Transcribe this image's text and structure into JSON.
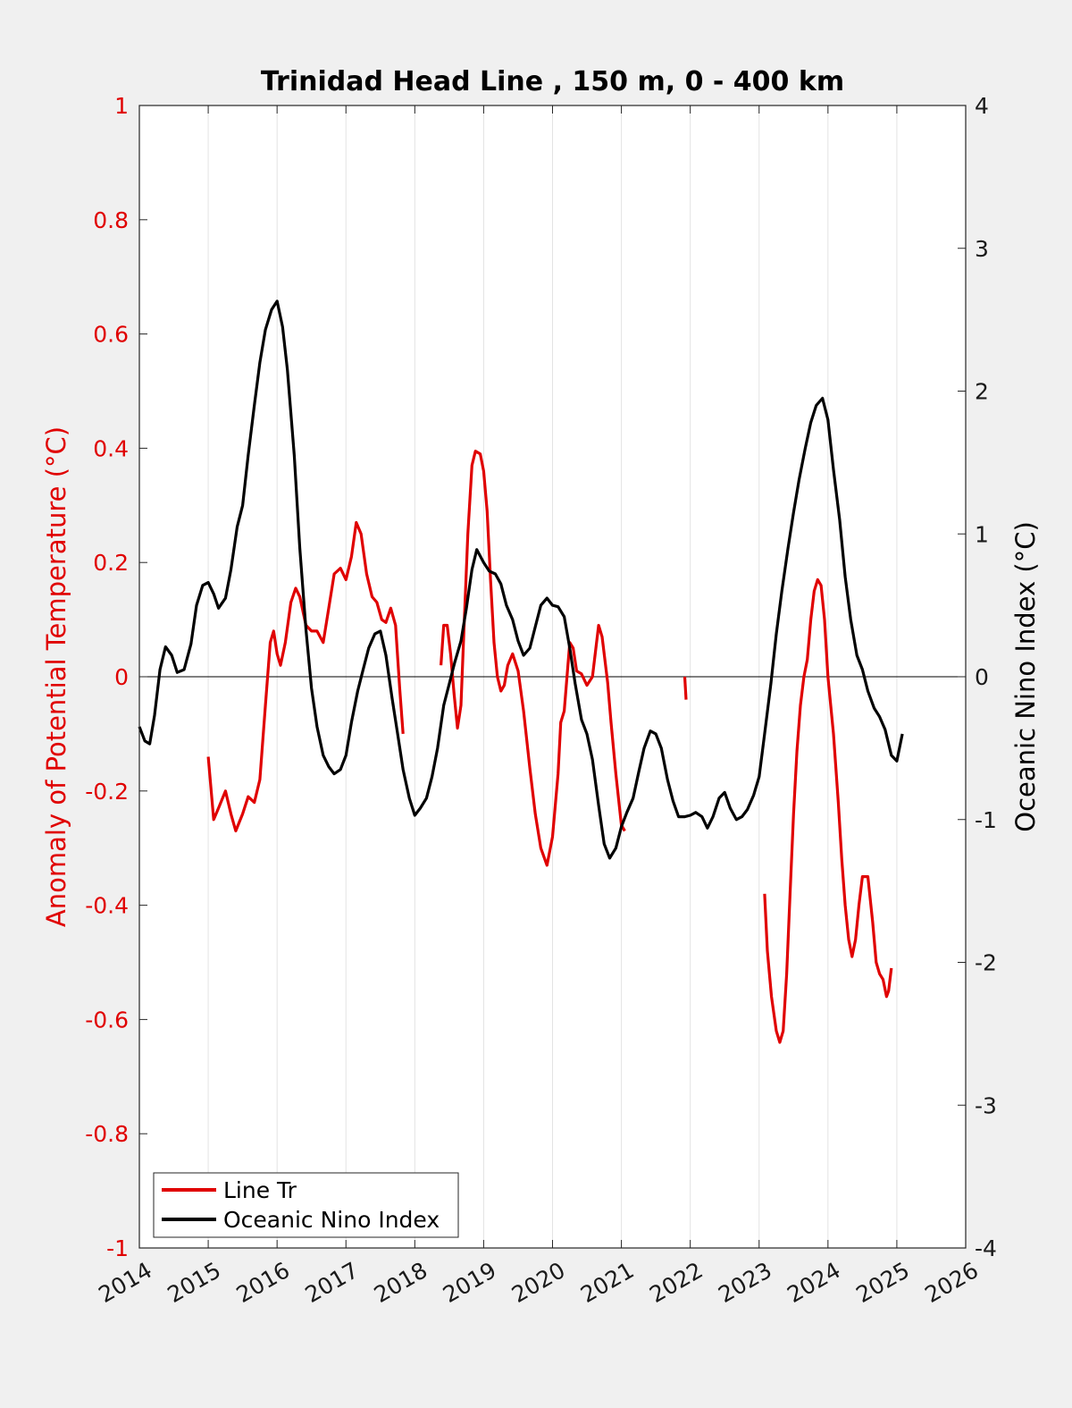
{
  "chart_data": {
    "type": "line",
    "title": "Trinidad Head Line , 150 m, 0 - 400 km",
    "ylabel_left": "Anomaly of Potential Temperature (°C)",
    "ylabel_right": "Oceanic Nino Index (°C)",
    "xlim": [
      2014,
      2026
    ],
    "ylim_left": [
      -1,
      1
    ],
    "ylim_right": [
      -4,
      4
    ],
    "x_ticks": [
      2014,
      2015,
      2016,
      2017,
      2018,
      2019,
      2020,
      2021,
      2022,
      2023,
      2024,
      2025,
      2026
    ],
    "x_tick_labels": [
      "2014",
      "2015",
      "2016",
      "2017",
      "2018",
      "2019",
      "2020",
      "2021",
      "2022",
      "2023",
      "2024",
      "2025",
      "2026"
    ],
    "y_left_ticks": [
      1,
      0.8,
      0.6,
      0.4,
      0.2,
      0,
      -0.2,
      -0.4,
      -0.6,
      -0.8,
      -1
    ],
    "y_left_tick_labels": [
      "1",
      "0.8",
      "0.6",
      "0.4",
      "0.2",
      "0",
      "-0.2",
      "-0.4",
      "-0.6",
      "-0.8",
      "-1"
    ],
    "y_right_ticks": [
      4,
      3,
      2,
      1,
      0,
      -1,
      -2,
      -3,
      -4
    ],
    "y_right_tick_labels": [
      "4",
      "3",
      "2",
      "1",
      "0",
      "-1",
      "-2",
      "-3",
      "-4"
    ],
    "grid": "vertical",
    "legend_position": "bottom-left",
    "series": [
      {
        "name": "Line Tr",
        "color": "#e00000",
        "axis": "left",
        "segments": [
          [
            [
              2015.0,
              -0.14
            ],
            [
              2015.08,
              -0.25
            ],
            [
              2015.15,
              -0.23
            ],
            [
              2015.25,
              -0.2
            ],
            [
              2015.33,
              -0.24
            ],
            [
              2015.4,
              -0.27
            ],
            [
              2015.5,
              -0.24
            ],
            [
              2015.58,
              -0.21
            ],
            [
              2015.67,
              -0.22
            ],
            [
              2015.75,
              -0.18
            ],
            [
              2015.83,
              -0.05
            ],
            [
              2015.9,
              0.06
            ],
            [
              2015.95,
              0.08
            ],
            [
              2016.0,
              0.04
            ],
            [
              2016.05,
              0.02
            ],
            [
              2016.12,
              0.06
            ],
            [
              2016.2,
              0.13
            ],
            [
              2016.27,
              0.155
            ],
            [
              2016.33,
              0.14
            ],
            [
              2016.42,
              0.09
            ],
            [
              2016.5,
              0.08
            ],
            [
              2016.58,
              0.08
            ],
            [
              2016.67,
              0.06
            ],
            [
              2016.75,
              0.12
            ],
            [
              2016.83,
              0.18
            ],
            [
              2016.92,
              0.19
            ],
            [
              2017.0,
              0.17
            ],
            [
              2017.08,
              0.21
            ],
            [
              2017.15,
              0.27
            ],
            [
              2017.22,
              0.25
            ],
            [
              2017.3,
              0.18
            ],
            [
              2017.38,
              0.14
            ],
            [
              2017.45,
              0.13
            ],
            [
              2017.52,
              0.1
            ],
            [
              2017.58,
              0.095
            ],
            [
              2017.65,
              0.12
            ],
            [
              2017.72,
              0.09
            ],
            [
              2017.78,
              -0.02
            ],
            [
              2017.83,
              -0.1
            ]
          ],
          [
            [
              2018.38,
              0.02
            ],
            [
              2018.42,
              0.09
            ],
            [
              2018.47,
              0.09
            ],
            [
              2018.52,
              0.04
            ],
            [
              2018.57,
              -0.03
            ],
            [
              2018.62,
              -0.09
            ],
            [
              2018.67,
              -0.05
            ],
            [
              2018.72,
              0.1
            ],
            [
              2018.77,
              0.25
            ],
            [
              2018.83,
              0.37
            ],
            [
              2018.88,
              0.395
            ],
            [
              2018.95,
              0.39
            ],
            [
              2019.0,
              0.36
            ],
            [
              2019.05,
              0.29
            ],
            [
              2019.1,
              0.17
            ],
            [
              2019.15,
              0.06
            ],
            [
              2019.2,
              0.0
            ],
            [
              2019.25,
              -0.025
            ],
            [
              2019.3,
              -0.015
            ],
            [
              2019.35,
              0.02
            ],
            [
              2019.42,
              0.04
            ],
            [
              2019.5,
              0.01
            ],
            [
              2019.58,
              -0.06
            ],
            [
              2019.67,
              -0.16
            ],
            [
              2019.75,
              -0.24
            ],
            [
              2019.83,
              -0.3
            ],
            [
              2019.92,
              -0.33
            ],
            [
              2020.0,
              -0.28
            ],
            [
              2020.08,
              -0.17
            ],
            [
              2020.12,
              -0.08
            ],
            [
              2020.17,
              -0.06
            ],
            [
              2020.25,
              0.06
            ],
            [
              2020.3,
              0.05
            ],
            [
              2020.35,
              0.01
            ],
            [
              2020.42,
              0.005
            ],
            [
              2020.5,
              -0.015
            ],
            [
              2020.58,
              0.0
            ],
            [
              2020.67,
              0.09
            ],
            [
              2020.72,
              0.07
            ],
            [
              2020.8,
              -0.01
            ],
            [
              2020.85,
              -0.08
            ],
            [
              2020.92,
              -0.17
            ],
            [
              2021.0,
              -0.26
            ],
            [
              2021.05,
              -0.27
            ]
          ],
          [
            [
              2021.92,
              0.0
            ],
            [
              2021.94,
              -0.04
            ]
          ],
          [
            [
              2023.08,
              -0.38
            ],
            [
              2023.12,
              -0.48
            ],
            [
              2023.18,
              -0.56
            ],
            [
              2023.25,
              -0.62
            ],
            [
              2023.3,
              -0.64
            ],
            [
              2023.35,
              -0.62
            ],
            [
              2023.4,
              -0.52
            ],
            [
              2023.45,
              -0.38
            ],
            [
              2023.5,
              -0.24
            ],
            [
              2023.55,
              -0.13
            ],
            [
              2023.6,
              -0.05
            ],
            [
              2023.65,
              0.0
            ],
            [
              2023.7,
              0.03
            ],
            [
              2023.75,
              0.1
            ],
            [
              2023.8,
              0.15
            ],
            [
              2023.85,
              0.17
            ],
            [
              2023.9,
              0.16
            ],
            [
              2023.95,
              0.1
            ],
            [
              2024.0,
              0.0
            ],
            [
              2024.08,
              -0.1
            ],
            [
              2024.15,
              -0.22
            ],
            [
              2024.2,
              -0.32
            ],
            [
              2024.25,
              -0.4
            ],
            [
              2024.3,
              -0.46
            ],
            [
              2024.35,
              -0.49
            ],
            [
              2024.4,
              -0.46
            ],
            [
              2024.45,
              -0.4
            ],
            [
              2024.5,
              -0.35
            ],
            [
              2024.58,
              -0.35
            ],
            [
              2024.65,
              -0.43
            ],
            [
              2024.7,
              -0.5
            ],
            [
              2024.75,
              -0.52
            ],
            [
              2024.8,
              -0.53
            ],
            [
              2024.85,
              -0.56
            ],
            [
              2024.88,
              -0.55
            ],
            [
              2024.92,
              -0.51
            ]
          ]
        ]
      },
      {
        "name": "Oceanic Nino Index",
        "color": "#000000",
        "axis": "right",
        "segments": [
          [
            [
              2014.0,
              -0.35
            ],
            [
              2014.08,
              -0.45
            ],
            [
              2014.15,
              -0.47
            ],
            [
              2014.22,
              -0.27
            ],
            [
              2014.3,
              0.05
            ],
            [
              2014.38,
              0.21
            ],
            [
              2014.47,
              0.15
            ],
            [
              2014.55,
              0.03
            ],
            [
              2014.65,
              0.05
            ],
            [
              2014.75,
              0.23
            ],
            [
              2014.83,
              0.5
            ],
            [
              2014.92,
              0.64
            ],
            [
              2015.0,
              0.66
            ],
            [
              2015.08,
              0.58
            ],
            [
              2015.15,
              0.48
            ],
            [
              2015.25,
              0.55
            ],
            [
              2015.33,
              0.75
            ],
            [
              2015.42,
              1.05
            ],
            [
              2015.5,
              1.2
            ],
            [
              2015.58,
              1.55
            ],
            [
              2015.67,
              1.9
            ],
            [
              2015.75,
              2.2
            ],
            [
              2015.83,
              2.43
            ],
            [
              2015.92,
              2.57
            ],
            [
              2016.0,
              2.63
            ],
            [
              2016.08,
              2.45
            ],
            [
              2016.15,
              2.15
            ],
            [
              2016.25,
              1.55
            ],
            [
              2016.33,
              0.9
            ],
            [
              2016.42,
              0.33
            ],
            [
              2016.5,
              -0.08
            ],
            [
              2016.58,
              -0.35
            ],
            [
              2016.67,
              -0.55
            ],
            [
              2016.75,
              -0.63
            ],
            [
              2016.83,
              -0.68
            ],
            [
              2016.92,
              -0.65
            ],
            [
              2017.0,
              -0.55
            ],
            [
              2017.08,
              -0.32
            ],
            [
              2017.17,
              -0.1
            ],
            [
              2017.25,
              0.05
            ],
            [
              2017.33,
              0.2
            ],
            [
              2017.42,
              0.3
            ],
            [
              2017.5,
              0.32
            ],
            [
              2017.58,
              0.15
            ],
            [
              2017.67,
              -0.15
            ],
            [
              2017.75,
              -0.4
            ],
            [
              2017.83,
              -0.65
            ],
            [
              2017.92,
              -0.85
            ],
            [
              2018.0,
              -0.97
            ],
            [
              2018.08,
              -0.92
            ],
            [
              2018.17,
              -0.85
            ],
            [
              2018.25,
              -0.7
            ],
            [
              2018.33,
              -0.5
            ],
            [
              2018.42,
              -0.2
            ],
            [
              2018.5,
              -0.05
            ],
            [
              2018.58,
              0.1
            ],
            [
              2018.67,
              0.25
            ],
            [
              2018.75,
              0.48
            ],
            [
              2018.83,
              0.75
            ],
            [
              2018.9,
              0.89
            ],
            [
              2019.0,
              0.8
            ],
            [
              2019.08,
              0.74
            ],
            [
              2019.17,
              0.72
            ],
            [
              2019.25,
              0.65
            ],
            [
              2019.33,
              0.5
            ],
            [
              2019.42,
              0.4
            ],
            [
              2019.5,
              0.25
            ],
            [
              2019.58,
              0.15
            ],
            [
              2019.67,
              0.2
            ],
            [
              2019.75,
              0.35
            ],
            [
              2019.83,
              0.5
            ],
            [
              2019.92,
              0.55
            ],
            [
              2020.0,
              0.5
            ],
            [
              2020.08,
              0.49
            ],
            [
              2020.17,
              0.42
            ],
            [
              2020.25,
              0.2
            ],
            [
              2020.33,
              -0.05
            ],
            [
              2020.42,
              -0.3
            ],
            [
              2020.5,
              -0.4
            ],
            [
              2020.58,
              -0.58
            ],
            [
              2020.67,
              -0.9
            ],
            [
              2020.75,
              -1.17
            ],
            [
              2020.83,
              -1.27
            ],
            [
              2020.92,
              -1.2
            ],
            [
              2021.0,
              -1.05
            ],
            [
              2021.08,
              -0.95
            ],
            [
              2021.17,
              -0.85
            ],
            [
              2021.25,
              -0.67
            ],
            [
              2021.33,
              -0.5
            ],
            [
              2021.42,
              -0.38
            ],
            [
              2021.5,
              -0.4
            ],
            [
              2021.58,
              -0.5
            ],
            [
              2021.67,
              -0.72
            ],
            [
              2021.75,
              -0.87
            ],
            [
              2021.83,
              -0.98
            ],
            [
              2021.92,
              -0.98
            ],
            [
              2022.0,
              -0.97
            ],
            [
              2022.08,
              -0.95
            ],
            [
              2022.17,
              -0.98
            ],
            [
              2022.25,
              -1.06
            ],
            [
              2022.33,
              -0.98
            ],
            [
              2022.42,
              -0.85
            ],
            [
              2022.5,
              -0.81
            ],
            [
              2022.58,
              -0.92
            ],
            [
              2022.67,
              -1.0
            ],
            [
              2022.75,
              -0.98
            ],
            [
              2022.83,
              -0.93
            ],
            [
              2022.92,
              -0.83
            ],
            [
              2023.0,
              -0.7
            ],
            [
              2023.08,
              -0.4
            ],
            [
              2023.17,
              -0.05
            ],
            [
              2023.25,
              0.3
            ],
            [
              2023.33,
              0.6
            ],
            [
              2023.42,
              0.9
            ],
            [
              2023.5,
              1.15
            ],
            [
              2023.58,
              1.38
            ],
            [
              2023.67,
              1.6
            ],
            [
              2023.75,
              1.78
            ],
            [
              2023.83,
              1.9
            ],
            [
              2023.92,
              1.95
            ],
            [
              2024.0,
              1.8
            ],
            [
              2024.08,
              1.45
            ],
            [
              2024.17,
              1.1
            ],
            [
              2024.25,
              0.7
            ],
            [
              2024.33,
              0.4
            ],
            [
              2024.42,
              0.15
            ],
            [
              2024.5,
              0.05
            ],
            [
              2024.58,
              -0.1
            ],
            [
              2024.67,
              -0.22
            ],
            [
              2024.75,
              -0.28
            ],
            [
              2024.83,
              -0.37
            ],
            [
              2024.92,
              -0.55
            ],
            [
              2025.0,
              -0.59
            ],
            [
              2025.08,
              -0.4
            ]
          ]
        ]
      }
    ]
  }
}
